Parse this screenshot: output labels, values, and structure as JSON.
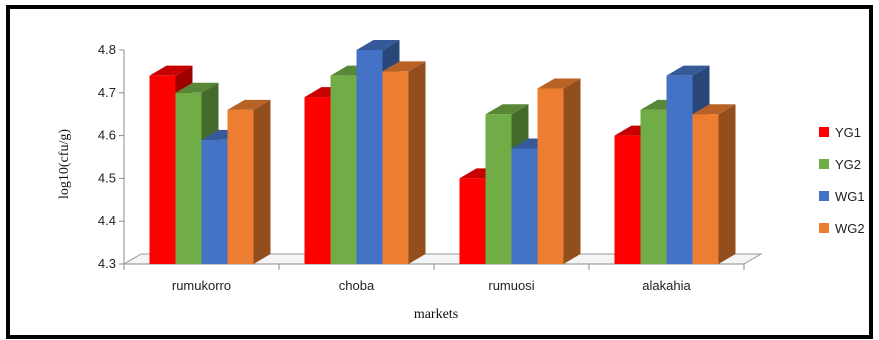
{
  "chart_data": {
    "type": "bar",
    "categories": [
      "rumukorro",
      "choba",
      "rumuosi",
      "alakahia"
    ],
    "series": [
      {
        "name": "YG1",
        "color": "#ff0000",
        "values": [
          4.74,
          4.69,
          4.5,
          4.6
        ]
      },
      {
        "name": "YG2",
        "color": "#70ad47",
        "values": [
          4.7,
          4.74,
          4.65,
          4.66
        ]
      },
      {
        "name": "WG1",
        "color": "#4472c4",
        "values": [
          4.59,
          4.8,
          4.57,
          4.74
        ]
      },
      {
        "name": "WG2",
        "color": "#ed7d31",
        "values": [
          4.66,
          4.75,
          4.71,
          4.65
        ]
      }
    ],
    "xlabel": "markets",
    "ylabel": "log10(cfu/g)",
    "ylim": [
      4.3,
      4.8
    ],
    "yticks": [
      "4.3",
      "4.4",
      "4.5",
      "4.6",
      "4.7",
      "4.8"
    ],
    "legend_position": "right",
    "grid": false,
    "style": "3d-clustered-column"
  }
}
